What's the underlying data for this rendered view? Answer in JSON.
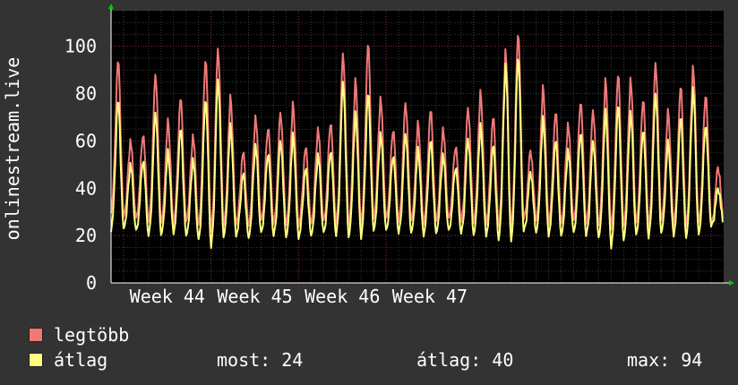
{
  "chart_data": {
    "type": "line",
    "ylabel": "onlinestream.live",
    "ylim": [
      0,
      115
    ],
    "yticks": [
      0,
      20,
      40,
      60,
      80,
      100
    ],
    "xticks": [
      "Week 44",
      "Week 45",
      "Week 46",
      "Week 47"
    ],
    "grid": true,
    "legend_position": "bottom-left",
    "series": [
      {
        "name": "legtöbb",
        "color": "#f07878",
        "daily_peaks": [
          94,
          60,
          63,
          88,
          68,
          78,
          62,
          95,
          99,
          78,
          55,
          70,
          66,
          72,
          75,
          57,
          65,
          68,
          97,
          85,
          101,
          78,
          65,
          76,
          67,
          73,
          65,
          58,
          74,
          80,
          70,
          98,
          106,
          56,
          82,
          72,
          67,
          77,
          73,
          85,
          88,
          86,
          78,
          93,
          72,
          83,
          91,
          80,
          49
        ],
        "daily_lows": [
          30,
          28,
          27,
          26,
          25,
          25,
          26,
          24,
          22,
          24,
          25,
          24,
          26,
          25,
          24,
          24,
          25,
          26,
          25,
          24,
          24,
          27,
          27,
          26,
          26,
          25,
          26,
          27,
          26,
          25,
          25,
          24,
          23,
          27,
          26,
          25,
          25,
          26,
          25,
          24,
          23,
          24,
          25,
          24,
          26,
          25,
          24,
          25,
          25
        ]
      },
      {
        "name": "átlag",
        "color": "#ffff80",
        "daily_peaks": [
          77,
          50,
          52,
          72,
          55,
          65,
          52,
          78,
          86,
          66,
          46,
          58,
          55,
          60,
          62,
          48,
          54,
          56,
          85,
          71,
          80,
          63,
          54,
          63,
          56,
          60,
          54,
          49,
          61,
          66,
          58,
          92,
          96,
          47,
          69,
          60,
          56,
          64,
          60,
          72,
          75,
          72,
          65,
          80,
          59,
          70,
          82,
          67,
          40
        ],
        "daily_lows": [
          22,
          23,
          22,
          20,
          20,
          21,
          20,
          18,
          15,
          19,
          20,
          19,
          21,
          20,
          19,
          19,
          20,
          21,
          20,
          19,
          19,
          22,
          22,
          21,
          21,
          20,
          21,
          22,
          21,
          20,
          20,
          18,
          17,
          22,
          21,
          20,
          20,
          21,
          20,
          19,
          15,
          18,
          20,
          19,
          21,
          20,
          19,
          20,
          24
        ]
      }
    ]
  },
  "stats": {
    "now_label": "most:",
    "now_value": "24",
    "avg_label": "átlag:",
    "avg_value": "40",
    "max_label": "max:",
    "max_value": "94"
  },
  "colors": {
    "background": "#333333",
    "plot_background": "#000000",
    "grid_major": "#7a2a2a",
    "grid_minor": "#3a3a3a",
    "axis": "#ffffff",
    "arrow": "#00cc00"
  }
}
